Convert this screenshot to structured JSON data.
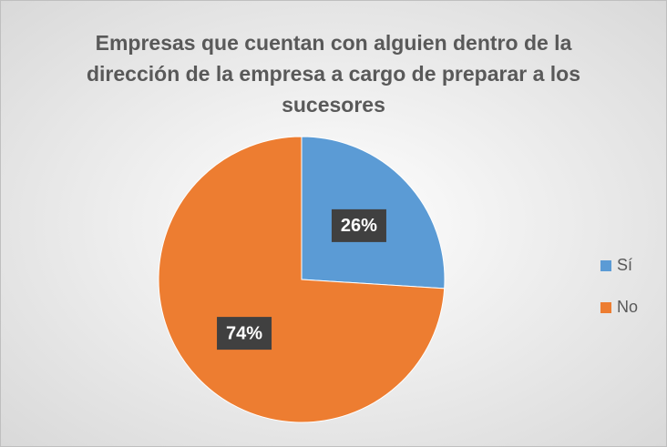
{
  "chart_data": {
    "type": "pie",
    "title": "Empresas que cuentan con alguien dentro de la dirección de la empresa a cargo de preparar a los sucesores",
    "categories": [
      "Sí",
      "No"
    ],
    "values": [
      26,
      74
    ],
    "value_labels": [
      "26%",
      "74%"
    ],
    "colors": [
      "#5b9bd5",
      "#ed7d31"
    ],
    "legend": "right"
  }
}
